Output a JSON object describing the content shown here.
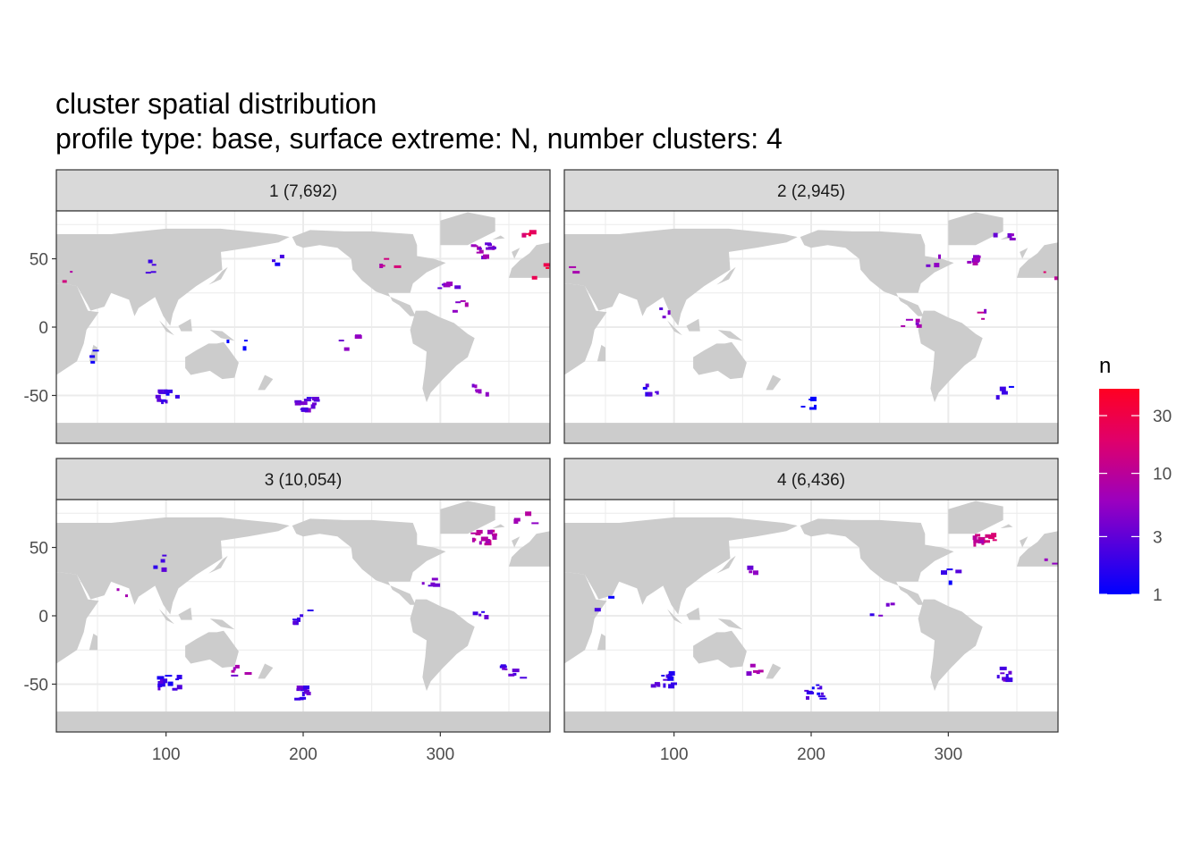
{
  "chart_data": {
    "type": "heatmap",
    "title": "cluster spatial distribution",
    "subtitle": "profile type: base, surface extreme: N, number clusters: 4",
    "x_ticks": [
      100,
      200,
      300
    ],
    "y_ticks": [
      50,
      0,
      -50
    ],
    "x_tick_labels": [
      "100",
      "200",
      "300"
    ],
    "y_tick_labels": [
      "50",
      "0",
      "-50"
    ],
    "xlim": [
      20,
      380
    ],
    "ylim": [
      -85,
      85
    ],
    "legend": {
      "title": "n",
      "scale": "log",
      "range": [
        1,
        50
      ],
      "ticks": [
        1,
        3,
        10,
        30
      ],
      "tick_labels": [
        "1",
        "3",
        "10",
        "30"
      ],
      "color_low": "#0000ff",
      "color_mid": "#e0006a",
      "color_high": "#ff0022",
      "placement": "right"
    },
    "colors": {
      "land": "#cccccc",
      "strip": "#d9d9d9",
      "grid": "#ebebeb",
      "border": "#333333"
    },
    "panels": [
      {
        "label": "1 (7,692)",
        "regions": [
          {
            "lon": 330,
            "lat": 57,
            "count": 14,
            "n": 5
          },
          {
            "lon": 362,
            "lat": 70,
            "count": 4,
            "n": 30
          },
          {
            "lon": 372,
            "lat": 42,
            "count": 3,
            "n": 30
          },
          {
            "lon": 260,
            "lat": 48,
            "count": 4,
            "n": 12
          },
          {
            "lon": 305,
            "lat": 30,
            "count": 5,
            "n": 4
          },
          {
            "lon": 90,
            "lat": 45,
            "count": 4,
            "n": 2
          },
          {
            "lon": 25,
            "lat": 38,
            "count": 2,
            "n": 12
          },
          {
            "lon": 180,
            "lat": 48,
            "count": 3,
            "n": 2
          },
          {
            "lon": 230,
            "lat": -10,
            "count": 4,
            "n": 4
          },
          {
            "lon": 315,
            "lat": 15,
            "count": 4,
            "n": 6
          },
          {
            "lon": 200,
            "lat": -55,
            "count": 12,
            "n": 3
          },
          {
            "lon": 100,
            "lat": -50,
            "count": 12,
            "n": 2
          },
          {
            "lon": 330,
            "lat": -45,
            "count": 6,
            "n": 5
          },
          {
            "lon": 50,
            "lat": -20,
            "count": 3,
            "n": 1
          },
          {
            "lon": 150,
            "lat": -10,
            "count": 3,
            "n": 1
          }
        ]
      },
      {
        "label": "2 (2,945)",
        "regions": [
          {
            "lon": 340,
            "lat": 70,
            "count": 4,
            "n": 5
          },
          {
            "lon": 320,
            "lat": 50,
            "count": 6,
            "n": 6
          },
          {
            "lon": 285,
            "lat": 50,
            "count": 3,
            "n": 4
          },
          {
            "lon": 370,
            "lat": 42,
            "count": 2,
            "n": 14
          },
          {
            "lon": 30,
            "lat": 40,
            "count": 2,
            "n": 6
          },
          {
            "lon": 270,
            "lat": 5,
            "count": 5,
            "n": 5
          },
          {
            "lon": 325,
            "lat": 10,
            "count": 3,
            "n": 8
          },
          {
            "lon": 90,
            "lat": 10,
            "count": 3,
            "n": 4
          },
          {
            "lon": 200,
            "lat": -55,
            "count": 6,
            "n": 1
          },
          {
            "lon": 80,
            "lat": -45,
            "count": 6,
            "n": 2
          },
          {
            "lon": 340,
            "lat": -45,
            "count": 4,
            "n": 2
          }
        ]
      },
      {
        "label": "3 (10,054)",
        "regions": [
          {
            "lon": 330,
            "lat": 58,
            "count": 16,
            "n": 10
          },
          {
            "lon": 360,
            "lat": 72,
            "count": 4,
            "n": 8
          },
          {
            "lon": 200,
            "lat": -55,
            "count": 14,
            "n": 3
          },
          {
            "lon": 100,
            "lat": -48,
            "count": 14,
            "n": 2
          },
          {
            "lon": 150,
            "lat": -40,
            "count": 5,
            "n": 6
          },
          {
            "lon": 290,
            "lat": 25,
            "count": 5,
            "n": 3
          },
          {
            "lon": 200,
            "lat": 0,
            "count": 6,
            "n": 2
          },
          {
            "lon": 90,
            "lat": 40,
            "count": 4,
            "n": 2
          },
          {
            "lon": 350,
            "lat": -40,
            "count": 8,
            "n": 3
          },
          {
            "lon": 70,
            "lat": 20,
            "count": 2,
            "n": 8
          },
          {
            "lon": 330,
            "lat": 0,
            "count": 4,
            "n": 3
          }
        ]
      },
      {
        "label": "4 (6,436)",
        "regions": [
          {
            "lon": 325,
            "lat": 58,
            "count": 12,
            "n": 12
          },
          {
            "lon": 200,
            "lat": -55,
            "count": 12,
            "n": 2
          },
          {
            "lon": 90,
            "lat": -45,
            "count": 12,
            "n": 2
          },
          {
            "lon": 160,
            "lat": -38,
            "count": 5,
            "n": 6
          },
          {
            "lon": 340,
            "lat": -42,
            "count": 8,
            "n": 3
          },
          {
            "lon": 250,
            "lat": 5,
            "count": 4,
            "n": 3
          },
          {
            "lon": 150,
            "lat": 35,
            "count": 3,
            "n": 4
          },
          {
            "lon": 300,
            "lat": 30,
            "count": 4,
            "n": 2
          },
          {
            "lon": 45,
            "lat": 10,
            "count": 2,
            "n": 2
          },
          {
            "lon": 370,
            "lat": 40,
            "count": 2,
            "n": 6
          }
        ]
      }
    ]
  }
}
